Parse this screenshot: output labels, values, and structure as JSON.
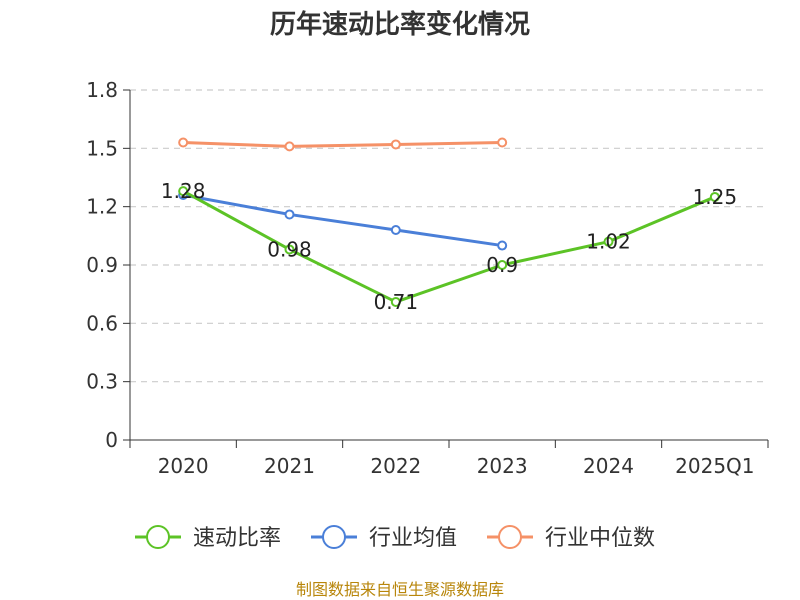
{
  "chart_data": {
    "type": "line",
    "title": "历年速动比率变化情况",
    "categories": [
      "2020",
      "2021",
      "2022",
      "2023",
      "2024",
      "2025Q1"
    ],
    "yticks": [
      "0",
      "0.3",
      "0.6",
      "0.9",
      "1.2",
      "1.5",
      "1.8"
    ],
    "ylim": [
      0,
      1.8
    ],
    "grid": true,
    "legend_position": "bottom",
    "series": [
      {
        "name": "速动比率",
        "color": "#5cc326",
        "values": [
          1.28,
          0.98,
          0.71,
          0.9,
          1.02,
          1.25
        ],
        "labels": [
          "1.28",
          "0.98",
          "0.71",
          "0.9",
          "1.02",
          "1.25"
        ]
      },
      {
        "name": "行业均值",
        "color": "#4a7fd8",
        "values": [
          1.26,
          1.16,
          1.08,
          1.0,
          null,
          null
        ]
      },
      {
        "name": "行业中位数",
        "color": "#f59167",
        "values": [
          1.53,
          1.51,
          1.52,
          1.53,
          null,
          null
        ]
      }
    ]
  },
  "footer": {
    "source": "制图数据来自恒生聚源数据库"
  }
}
